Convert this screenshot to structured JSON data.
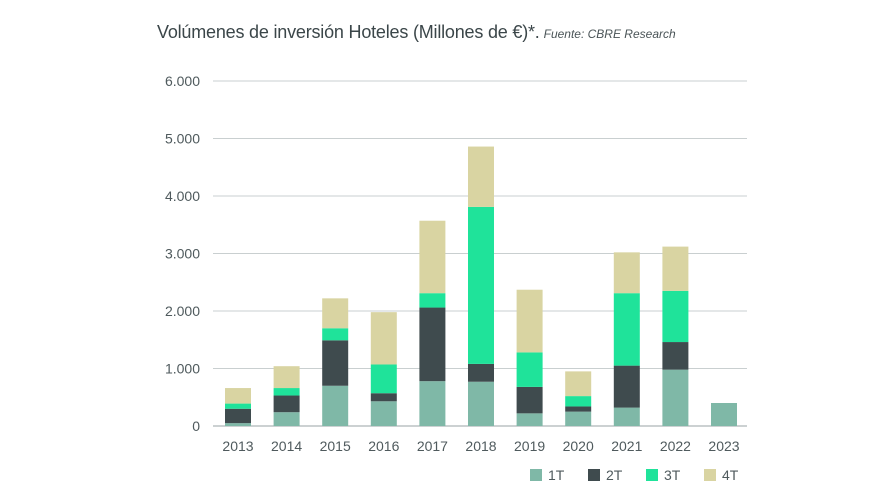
{
  "chart_data": {
    "type": "bar",
    "stacked": true,
    "title": "Volúmenes de inversión Hoteles (Millones de €)*.",
    "subtitle": "Fuente: CBRE Research",
    "xlabel": "",
    "ylabel": "",
    "ylim": [
      0,
      6000
    ],
    "yticks": [
      0,
      1000,
      2000,
      3000,
      4000,
      5000,
      6000
    ],
    "ytick_labels": [
      "0",
      "1.000",
      "2.000",
      "3.000",
      "4.000",
      "5.000",
      "6.000"
    ],
    "categories": [
      "2013",
      "2014",
      "2015",
      "2016",
      "2017",
      "2018",
      "2019",
      "2020",
      "2021",
      "2022",
      "2023"
    ],
    "grid": true,
    "legend_position": "bottom-right",
    "series": [
      {
        "name": "1T",
        "color": "#7fb8a7",
        "values": [
          50,
          240,
          700,
          430,
          780,
          770,
          220,
          250,
          320,
          980,
          400
        ]
      },
      {
        "name": "2T",
        "color": "#3f4b4e",
        "values": [
          250,
          290,
          790,
          140,
          1280,
          310,
          460,
          90,
          730,
          480,
          0
        ]
      },
      {
        "name": "3T",
        "color": "#1fe39a",
        "values": [
          90,
          130,
          210,
          500,
          250,
          2730,
          600,
          180,
          1260,
          890,
          0
        ]
      },
      {
        "name": "4T",
        "color": "#d9d4a2",
        "values": [
          270,
          380,
          520,
          910,
          1260,
          1050,
          1090,
          430,
          710,
          770,
          0
        ]
      }
    ]
  }
}
